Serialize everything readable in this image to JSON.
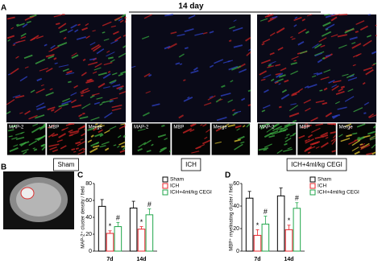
{
  "labels": {
    "a": "A",
    "b": "B",
    "c": "C",
    "d": "D"
  },
  "title": "14 day",
  "panels": [
    {
      "caption": "Sham",
      "insets": [
        "MAP-2",
        "MBP",
        "Merge"
      ]
    },
    {
      "caption": "ICH",
      "insets": [
        "MAP-2",
        "MBP",
        "Merge"
      ]
    },
    {
      "caption": "ICH+4ml/kg CEGI",
      "insets": [
        "MAP-2",
        "MBP",
        "Merge"
      ]
    }
  ],
  "chart_data": [
    {
      "type": "bar",
      "ylabel": "MAP-2⁺ cluster density / field",
      "categories": [
        "7d",
        "14d"
      ],
      "series": [
        {
          "name": "Sham",
          "color": "#000000",
          "values": [
            53,
            51
          ],
          "errors": [
            8,
            8
          ]
        },
        {
          "name": "ICH",
          "color": "#e8232a",
          "values": [
            21,
            26
          ],
          "errors": [
            3,
            3
          ]
        },
        {
          "name": "ICH+4ml/kg CEGI",
          "color": "#1fa64a",
          "values": [
            29,
            43
          ],
          "errors": [
            5,
            7
          ]
        }
      ],
      "annotations": [
        {
          "text": "*",
          "series": 1,
          "category": 0
        },
        {
          "text": "#",
          "series": 2,
          "category": 0
        },
        {
          "text": "*",
          "series": 1,
          "category": 1
        },
        {
          "text": "#",
          "series": 2,
          "category": 1
        }
      ],
      "ylim": [
        0,
        80
      ],
      "yticks": [
        0,
        20,
        40,
        60,
        80
      ]
    },
    {
      "type": "bar",
      "ylabel": "MBP⁺ myelinating cluster / field",
      "categories": [
        "7d",
        "14d"
      ],
      "series": [
        {
          "name": "Sham",
          "color": "#000000",
          "values": [
            47,
            49
          ],
          "errors": [
            6,
            7
          ]
        },
        {
          "name": "ICH",
          "color": "#e8232a",
          "values": [
            14,
            19
          ],
          "errors": [
            5,
            4
          ]
        },
        {
          "name": "ICH+4ml/kg CEGI",
          "color": "#1fa64a",
          "values": [
            24,
            38
          ],
          "errors": [
            7,
            5
          ]
        }
      ],
      "annotations": [
        {
          "text": "*",
          "series": 1,
          "category": 0
        },
        {
          "text": "#",
          "series": 2,
          "category": 0
        },
        {
          "text": "*",
          "series": 1,
          "category": 1
        },
        {
          "text": "#",
          "series": 2,
          "category": 1
        }
      ],
      "ylim": [
        0,
        60
      ],
      "yticks": [
        0,
        20,
        40,
        60
      ]
    }
  ]
}
